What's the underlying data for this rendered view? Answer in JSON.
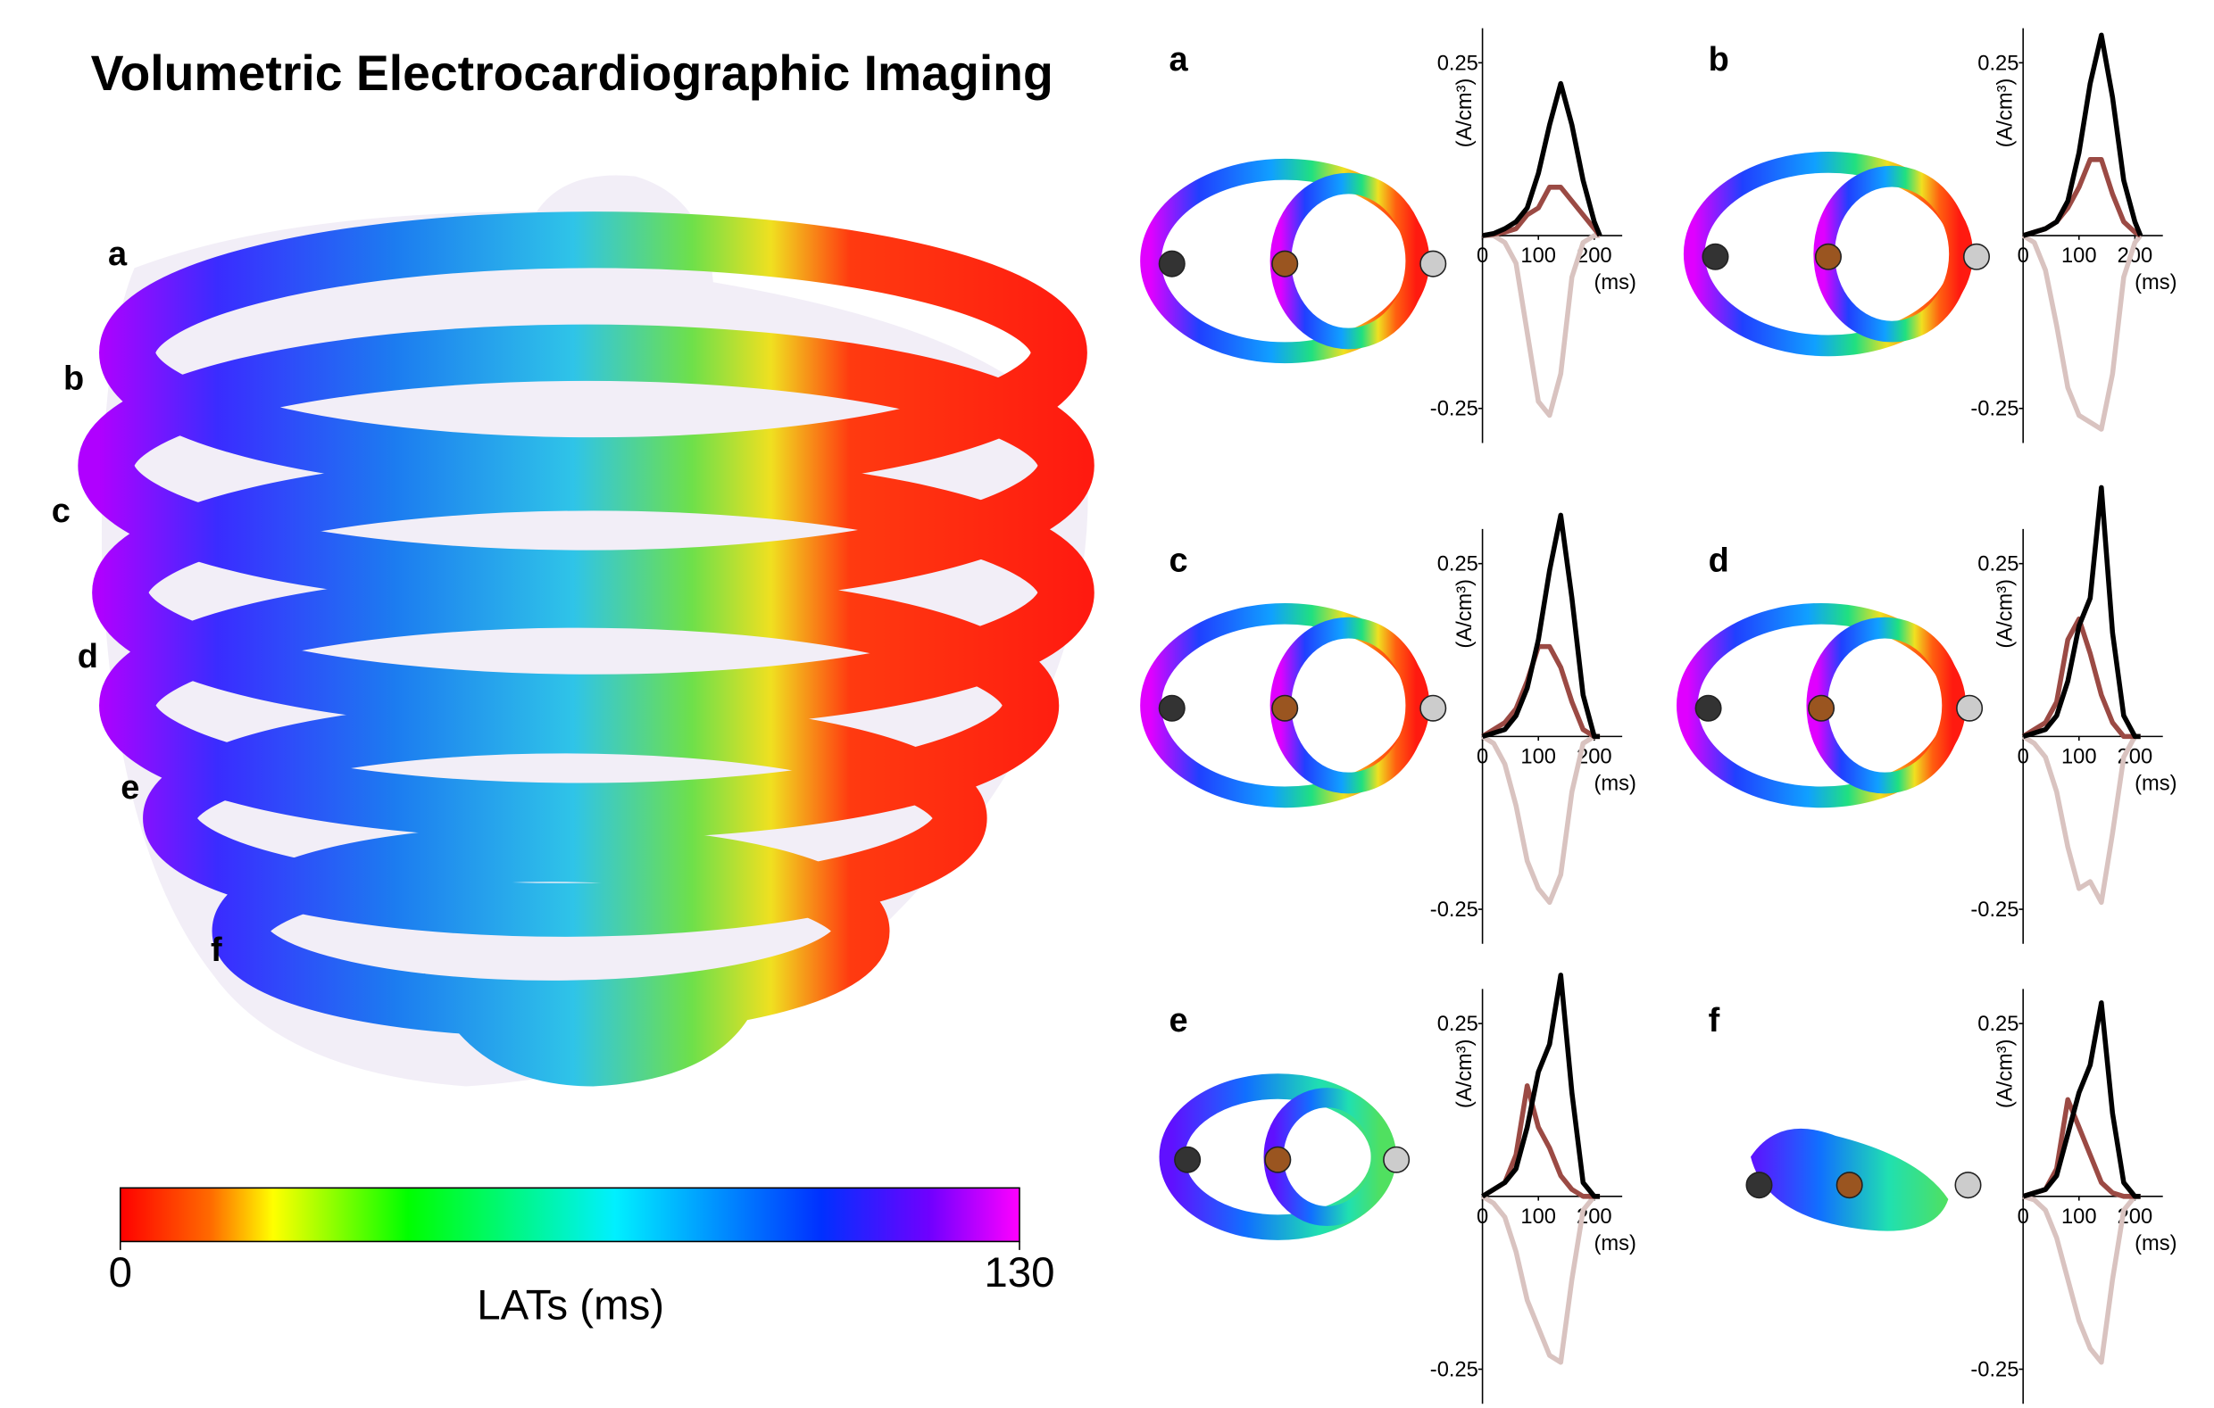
{
  "title": "Volumetric Electrocardiographic Imaging",
  "heart_slices": [
    "a",
    "b",
    "c",
    "d",
    "e",
    "f"
  ],
  "colorbar": {
    "label": "LATs (ms)",
    "xlim": [
      0,
      130
    ],
    "xticks": [
      0,
      130
    ]
  },
  "chart_data": [
    {
      "type": "line",
      "title": "a",
      "ylabel": "(A/cm³)",
      "xlabel": "(ms)",
      "x": [
        0,
        20,
        40,
        60,
        80,
        100,
        120,
        140,
        160,
        180,
        200,
        210
      ],
      "xlim": [
        0,
        250
      ],
      "ylim": [
        -0.3,
        0.3
      ],
      "xticks": [
        0,
        100,
        200
      ],
      "yticks": [
        -0.25,
        0.25
      ],
      "series": [
        {
          "color": "#000000",
          "values": [
            0,
            0.003,
            0.01,
            0.02,
            0.04,
            0.09,
            0.16,
            0.22,
            0.16,
            0.08,
            0.02,
            0
          ]
        },
        {
          "color": "#9b4a44",
          "values": [
            0,
            0.002,
            0.005,
            0.01,
            0.03,
            0.04,
            0.07,
            0.07,
            0.05,
            0.03,
            0.01,
            0
          ]
        },
        {
          "color": "#d9c3c0",
          "values": [
            0,
            0,
            -0.01,
            -0.04,
            -0.14,
            -0.24,
            -0.26,
            -0.2,
            -0.06,
            -0.01,
            0,
            0
          ]
        }
      ]
    },
    {
      "type": "line",
      "title": "b",
      "ylabel": "(A/cm³)",
      "xlabel": "(ms)",
      "x": [
        0,
        20,
        40,
        60,
        80,
        100,
        120,
        140,
        160,
        180,
        200,
        210
      ],
      "xlim": [
        0,
        250
      ],
      "ylim": [
        -0.3,
        0.3
      ],
      "xticks": [
        0,
        100,
        200
      ],
      "yticks": [
        -0.25,
        0.25
      ],
      "series": [
        {
          "color": "#000000",
          "values": [
            0,
            0.005,
            0.01,
            0.02,
            0.05,
            0.12,
            0.22,
            0.29,
            0.2,
            0.08,
            0.02,
            0
          ]
        },
        {
          "color": "#9b4a44",
          "values": [
            0,
            0.005,
            0.01,
            0.02,
            0.04,
            0.07,
            0.11,
            0.11,
            0.06,
            0.02,
            0.005,
            0
          ]
        },
        {
          "color": "#d9c3c0",
          "values": [
            0,
            -0.01,
            -0.05,
            -0.13,
            -0.22,
            -0.26,
            -0.27,
            -0.28,
            -0.2,
            -0.06,
            -0.01,
            0
          ]
        }
      ]
    },
    {
      "type": "line",
      "title": "c",
      "ylabel": "(A/cm³)",
      "xlabel": "(ms)",
      "x": [
        0,
        20,
        40,
        60,
        80,
        100,
        120,
        140,
        160,
        180,
        200,
        210
      ],
      "xlim": [
        0,
        250
      ],
      "ylim": [
        -0.3,
        0.3
      ],
      "xticks": [
        0,
        100,
        200
      ],
      "yticks": [
        -0.25,
        0.25
      ],
      "series": [
        {
          "color": "#000000",
          "values": [
            0,
            0.005,
            0.01,
            0.03,
            0.07,
            0.14,
            0.24,
            0.32,
            0.2,
            0.06,
            0,
            0
          ]
        },
        {
          "color": "#9b4a44",
          "values": [
            0,
            0.01,
            0.02,
            0.04,
            0.08,
            0.13,
            0.13,
            0.1,
            0.05,
            0.01,
            0,
            0
          ]
        },
        {
          "color": "#d9c3c0",
          "values": [
            0,
            -0.01,
            -0.04,
            -0.1,
            -0.18,
            -0.22,
            -0.24,
            -0.2,
            -0.08,
            -0.01,
            0,
            0
          ]
        }
      ]
    },
    {
      "type": "line",
      "title": "d",
      "ylabel": "(A/cm³)",
      "xlabel": "(ms)",
      "x": [
        0,
        20,
        40,
        60,
        80,
        100,
        120,
        140,
        160,
        180,
        200,
        210
      ],
      "xlim": [
        0,
        250
      ],
      "ylim": [
        -0.3,
        0.3
      ],
      "xticks": [
        0,
        100,
        200
      ],
      "yticks": [
        -0.25,
        0.25
      ],
      "series": [
        {
          "color": "#000000",
          "values": [
            0,
            0.005,
            0.01,
            0.03,
            0.08,
            0.16,
            0.2,
            0.36,
            0.15,
            0.03,
            0,
            0
          ]
        },
        {
          "color": "#9b4a44",
          "values": [
            0,
            0.01,
            0.02,
            0.05,
            0.14,
            0.17,
            0.12,
            0.06,
            0.02,
            0,
            0,
            0
          ]
        },
        {
          "color": "#d9c3c0",
          "values": [
            0,
            -0.01,
            -0.03,
            -0.08,
            -0.16,
            -0.22,
            -0.21,
            -0.24,
            -0.14,
            -0.03,
            0,
            0
          ]
        }
      ]
    },
    {
      "type": "line",
      "title": "e",
      "ylabel": "(A/cm³)",
      "xlabel": "(ms)",
      "x": [
        0,
        20,
        40,
        60,
        80,
        100,
        120,
        140,
        160,
        180,
        200,
        210
      ],
      "xlim": [
        0,
        250
      ],
      "ylim": [
        -0.3,
        0.3
      ],
      "xticks": [
        0,
        100,
        200
      ],
      "yticks": [
        -0.25,
        0.25
      ],
      "series": [
        {
          "color": "#000000",
          "values": [
            0,
            0.01,
            0.02,
            0.04,
            0.1,
            0.18,
            0.22,
            0.32,
            0.15,
            0.02,
            0,
            0
          ]
        },
        {
          "color": "#9b4a44",
          "values": [
            0,
            0.01,
            0.02,
            0.06,
            0.16,
            0.1,
            0.07,
            0.03,
            0.01,
            0,
            0,
            0
          ]
        },
        {
          "color": "#d9c3c0",
          "values": [
            0,
            -0.01,
            -0.03,
            -0.08,
            -0.15,
            -0.19,
            -0.23,
            -0.24,
            -0.12,
            -0.02,
            0,
            0
          ]
        }
      ]
    },
    {
      "type": "line",
      "title": "f",
      "ylabel": "(A/cm³)",
      "xlabel": "(ms)",
      "x": [
        0,
        20,
        40,
        60,
        80,
        100,
        120,
        140,
        160,
        180,
        200,
        210
      ],
      "xlim": [
        0,
        250
      ],
      "ylim": [
        -0.3,
        0.3
      ],
      "xticks": [
        0,
        100,
        200
      ],
      "yticks": [
        -0.25,
        0.25
      ],
      "series": [
        {
          "color": "#000000",
          "values": [
            0,
            0.005,
            0.01,
            0.03,
            0.09,
            0.15,
            0.19,
            0.28,
            0.12,
            0.02,
            0,
            0
          ]
        },
        {
          "color": "#9b4a44",
          "values": [
            0,
            0.005,
            0.01,
            0.04,
            0.14,
            0.1,
            0.06,
            0.02,
            0.005,
            0,
            0,
            0
          ]
        },
        {
          "color": "#d9c3c0",
          "values": [
            0,
            -0.005,
            -0.02,
            -0.06,
            -0.12,
            -0.18,
            -0.22,
            -0.24,
            -0.12,
            -0.02,
            0,
            0
          ]
        }
      ]
    }
  ]
}
